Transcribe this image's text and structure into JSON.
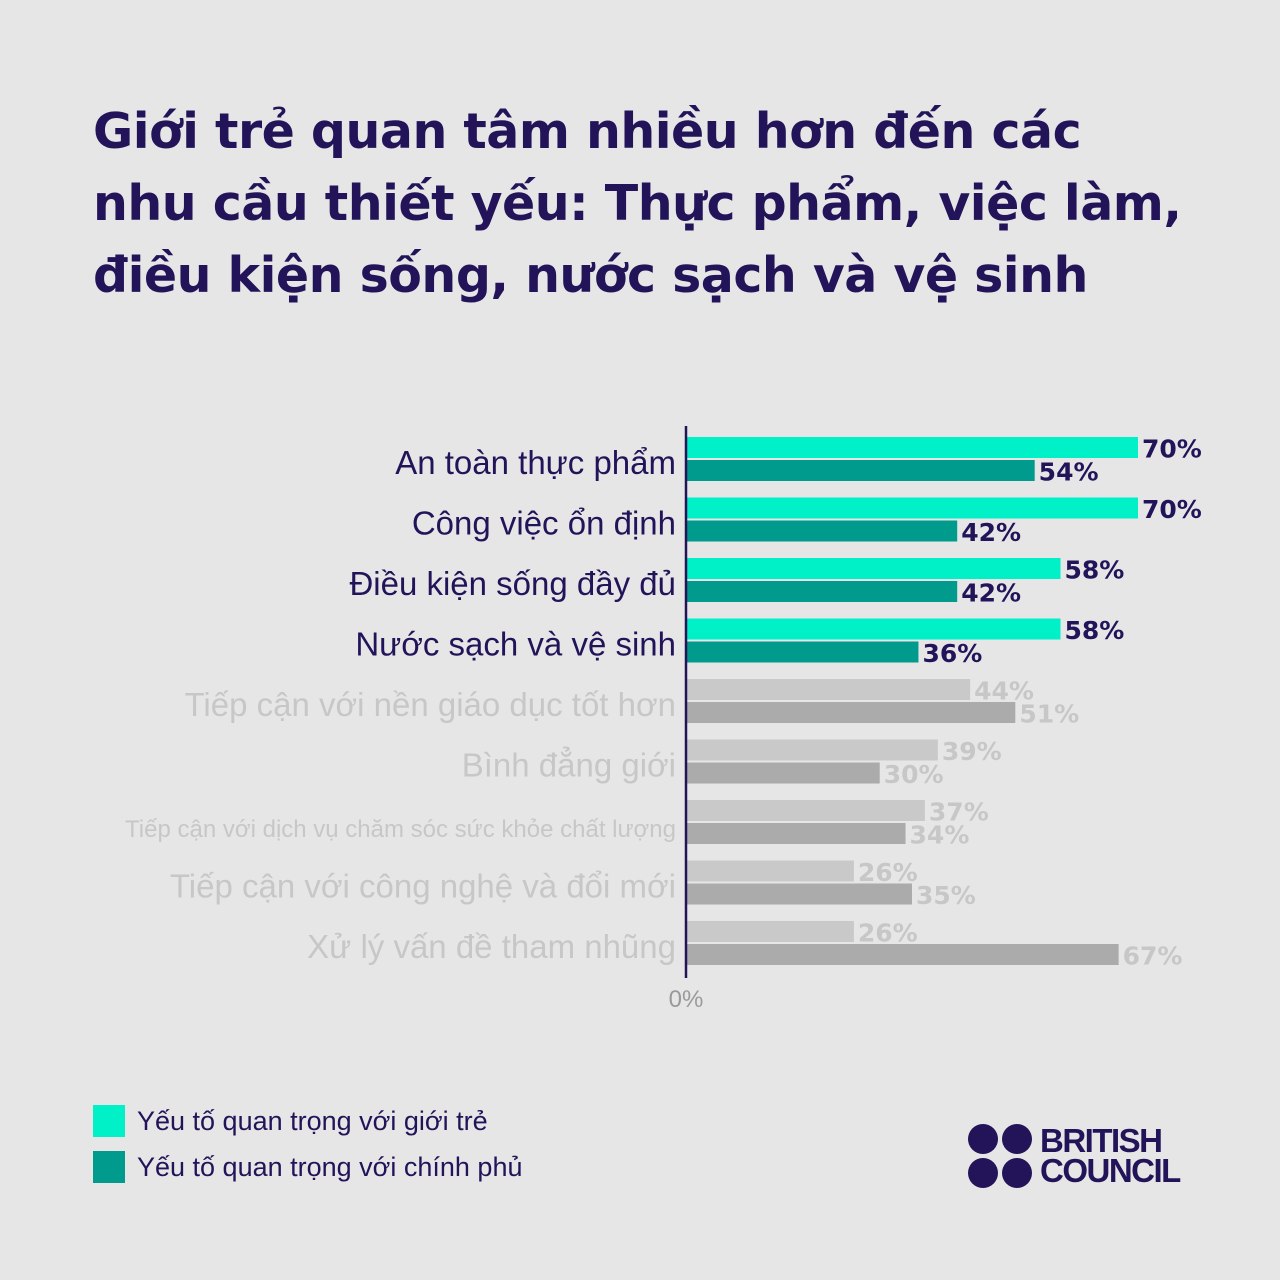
{
  "title": "Giới trẻ quan tâm nhiều hơn đến các nhu cầu thiết yếu: Thực phẩm, việc làm, điều kiện sống, nước sạch và vệ sinh",
  "logo": {
    "line1": "BRITISH",
    "line2": "COUNCIL"
  },
  "colors": {
    "youth": "#00f0c8",
    "government": "#009b8c",
    "muted_light": "#c9c9c9",
    "muted_dark": "#ababab",
    "navy": "#231459",
    "muted_text": "#c7c7c7"
  },
  "chart_data": {
    "type": "bar",
    "orientation": "horizontal",
    "xlim": [
      0,
      75
    ],
    "x_tick_label": "0%",
    "categories": [
      "An toàn thực phẩm",
      "Công việc ổn định",
      "Điều kiện sống đầy đủ",
      "Nước sạch và vệ sinh",
      "Tiếp cận với nền giáo dục tốt hơn",
      "Bình đẳng giới",
      "Tiếp cận với dịch vụ chăm sóc sức khỏe chất lượng",
      "Tiếp cận với công nghệ và đổi mới",
      "Xử lý vấn đề tham nhũng"
    ],
    "highlighted": [
      true,
      true,
      true,
      true,
      false,
      false,
      false,
      false,
      false
    ],
    "series": [
      {
        "name": "Yếu tố quan trọng với giới trẻ",
        "values": [
          70,
          70,
          58,
          58,
          44,
          39,
          37,
          26,
          26
        ]
      },
      {
        "name": "Yếu tố quan trọng với chính phủ",
        "values": [
          54,
          42,
          42,
          36,
          51,
          30,
          34,
          35,
          67
        ]
      }
    ],
    "value_labels": [
      [
        "70%",
        "70%",
        "58%",
        "58%",
        "44%",
        "39%",
        "37%",
        "26%",
        "26%"
      ],
      [
        "54%",
        "42%",
        "42%",
        "36%",
        "51%",
        "30%",
        "34%",
        "35%",
        "67%"
      ]
    ]
  }
}
